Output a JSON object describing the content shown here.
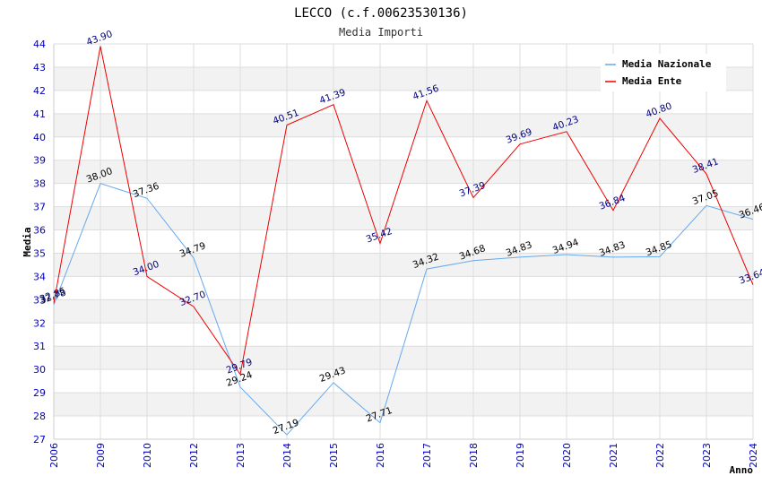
{
  "chart_data": {
    "type": "line",
    "title": "LECCO (c.f.00623530136)",
    "subtitle": "Media Importi",
    "xlabel": "Anno",
    "ylabel": "Media",
    "ylim": [
      27,
      44
    ],
    "yticks": [
      "27",
      "28",
      "29",
      "30",
      "31",
      "32",
      "33",
      "34",
      "35",
      "36",
      "37",
      "38",
      "39",
      "40",
      "41",
      "42",
      "43",
      "44"
    ],
    "categories": [
      "2006",
      "2009",
      "2010",
      "2012",
      "2013",
      "2014",
      "2015",
      "2016",
      "2017",
      "2018",
      "2019",
      "2020",
      "2021",
      "2022",
      "2023",
      "2024"
    ],
    "legend_position": "top-right",
    "series": [
      {
        "name": "Media Nazionale",
        "color": "#66aaee",
        "label_color": "#000000",
        "values": [
          32.78,
          38.0,
          37.36,
          34.79,
          29.24,
          27.19,
          29.43,
          27.71,
          34.32,
          34.68,
          34.83,
          34.94,
          34.83,
          34.85,
          37.05,
          36.46
        ],
        "labels": [
          "32.78",
          "38.00",
          "37.36",
          "34.79",
          "29.24",
          "27.19",
          "29.43",
          "27.71",
          "34.32",
          "34.68",
          "34.83",
          "34.94",
          "34.83",
          "34.85",
          "37.05",
          "36.46"
        ]
      },
      {
        "name": "Media Ente",
        "color": "#ee0000",
        "label_color": "#000080",
        "values": [
          32.85,
          43.9,
          34.0,
          32.7,
          29.79,
          40.51,
          41.39,
          35.42,
          41.56,
          37.39,
          39.69,
          40.23,
          36.84,
          40.8,
          38.41,
          33.64
        ],
        "labels": [
          "32.85",
          "43.90",
          "34.00",
          "32.70",
          "29.79",
          "40.51",
          "41.39",
          "35.42",
          "41.56",
          "37.39",
          "39.69",
          "40.23",
          "36.84",
          "40.80",
          "38.41",
          "33.64"
        ]
      }
    ]
  }
}
